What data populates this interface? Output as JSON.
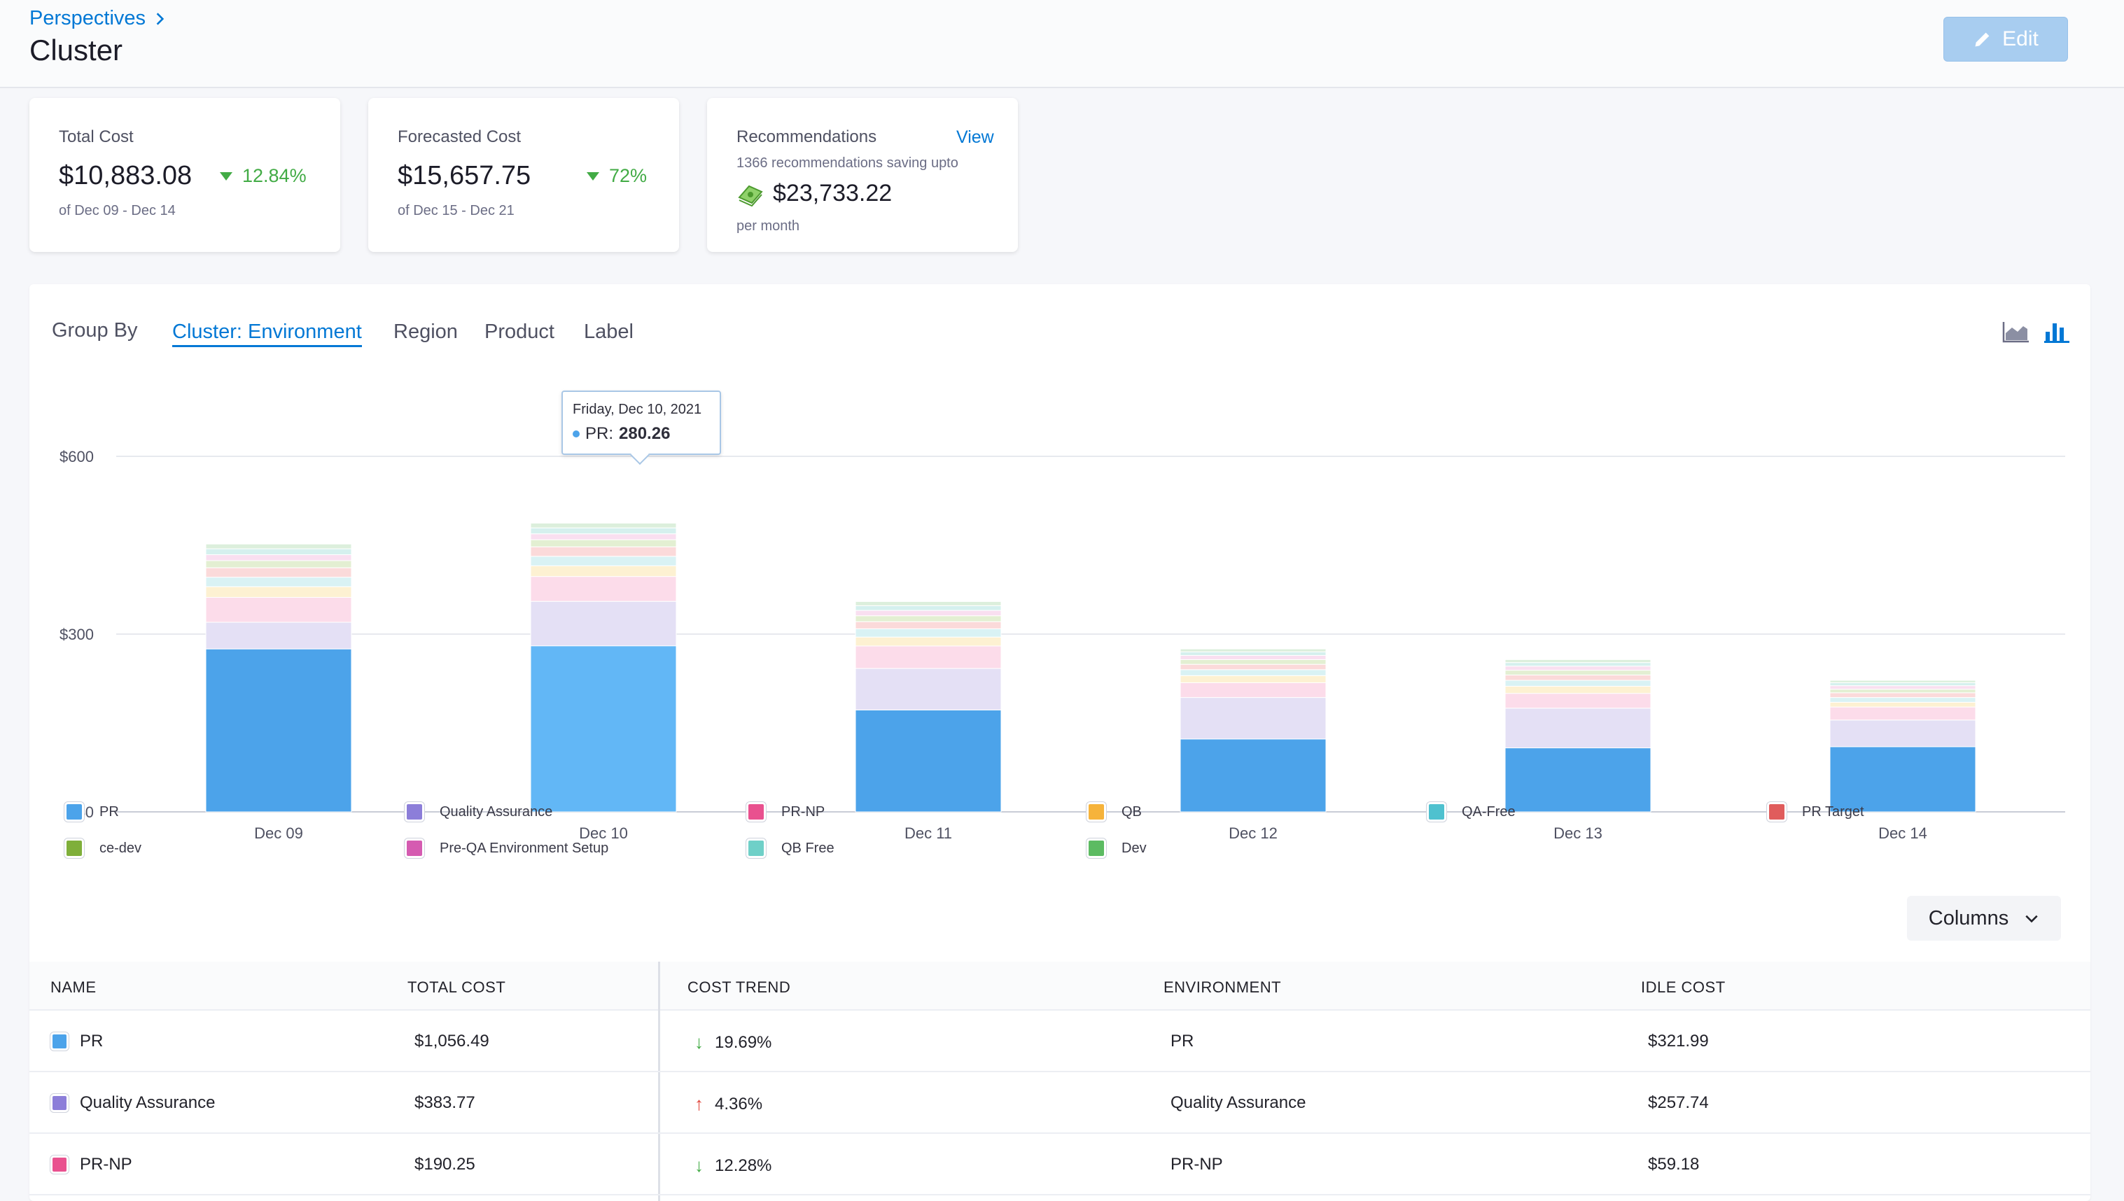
{
  "header": {
    "breadcrumb": "Perspectives",
    "title": "Cluster",
    "edit_label": "Edit"
  },
  "cards": {
    "total": {
      "label": "Total Cost",
      "value": "$10,883.08",
      "trend": "12.84%",
      "sub": "of Dec 09 - Dec 14"
    },
    "forecast": {
      "label": "Forecasted Cost",
      "value": "$15,657.75",
      "trend": "72%",
      "sub": "of Dec 15 - Dec 21"
    },
    "recommendations": {
      "label": "Recommendations",
      "view_label": "View",
      "sub": "1366 recommendations saving upto",
      "value": "$23,733.22",
      "per": "per month"
    }
  },
  "groupby": {
    "label": "Group By",
    "tabs": [
      "Cluster: Environment",
      "Region",
      "Product",
      "Label"
    ],
    "active": 0
  },
  "chart_data": {
    "type": "bar",
    "stacked": true,
    "categories": [
      "Dec 09",
      "Dec 10",
      "Dec 11",
      "Dec 12",
      "Dec 13",
      "Dec 14"
    ],
    "y_ticks": [
      "$600",
      "$300",
      "$0"
    ],
    "ylim": [
      0,
      600
    ],
    "series": [
      {
        "name": "PR",
        "color": "#4ca3ea",
        "values": [
          275,
          280.26,
          172,
          123,
          108,
          110
        ]
      },
      {
        "name": "Quality Assurance",
        "color": "#e4e0f5",
        "values": [
          45,
          75,
          70,
          70,
          67,
          45
        ]
      },
      {
        "name": "PR-NP",
        "color": "#fcdcea",
        "values": [
          42,
          42,
          38,
          25,
          25,
          22
        ]
      },
      {
        "name": "QB",
        "color": "#fdf1d2",
        "values": [
          18,
          18,
          15,
          12,
          12,
          8
        ]
      },
      {
        "name": "QA-Free",
        "color": "#d9f2f4",
        "values": [
          16,
          16,
          14,
          10,
          10,
          8
        ]
      },
      {
        "name": "PR Target",
        "color": "#fbdada",
        "values": [
          16,
          16,
          12,
          9,
          9,
          8
        ]
      },
      {
        "name": "ce-dev",
        "color": "#e3efd2",
        "values": [
          12,
          12,
          10,
          8,
          8,
          6
        ]
      },
      {
        "name": "Pre-QA Environment Setup",
        "color": "#f9dff0",
        "values": [
          10,
          10,
          9,
          7,
          7,
          6
        ]
      },
      {
        "name": "QB Free",
        "color": "#d5f0ee",
        "values": [
          10,
          10,
          8,
          6,
          6,
          5
        ]
      },
      {
        "name": "Dev",
        "color": "#dcefdc",
        "values": [
          8,
          8,
          7,
          5,
          5,
          4
        ]
      }
    ],
    "tooltip": {
      "date": "Friday, Dec 10, 2021",
      "series": "PR:",
      "value": "280.26"
    }
  },
  "legend": [
    {
      "name": "PR",
      "color": "#4ca3ea"
    },
    {
      "name": "Quality Assurance",
      "color": "#8c7ed9"
    },
    {
      "name": "PR-NP",
      "color": "#e9518f"
    },
    {
      "name": "QB",
      "color": "#f6b33b"
    },
    {
      "name": "QA-Free",
      "color": "#4fc1cf"
    },
    {
      "name": "PR Target",
      "color": "#e05c5c"
    },
    {
      "name": "ce-dev",
      "color": "#7faf3a"
    },
    {
      "name": "Pre-QA Environment Setup",
      "color": "#d55bb1"
    },
    {
      "name": "QB Free",
      "color": "#6fd0c8"
    },
    {
      "name": "Dev",
      "color": "#5cbb62"
    }
  ],
  "columns_label": "Columns",
  "table": {
    "headers": [
      "NAME",
      "TOTAL COST",
      "COST TREND",
      "ENVIRONMENT",
      "IDLE COST"
    ],
    "rows": [
      {
        "name": "PR",
        "color": "#4ca3ea",
        "total": "$1,056.49",
        "trend": "19.69%",
        "trend_dir": "down",
        "environment": "PR",
        "idle": "$321.99"
      },
      {
        "name": "Quality Assurance",
        "color": "#8c7ed9",
        "total": "$383.77",
        "trend": "4.36%",
        "trend_dir": "up",
        "environment": "Quality Assurance",
        "idle": "$257.74"
      },
      {
        "name": "PR-NP",
        "color": "#e9518f",
        "total": "$190.25",
        "trend": "12.28%",
        "trend_dir": "down",
        "environment": "PR-NP",
        "idle": "$59.18"
      }
    ]
  }
}
